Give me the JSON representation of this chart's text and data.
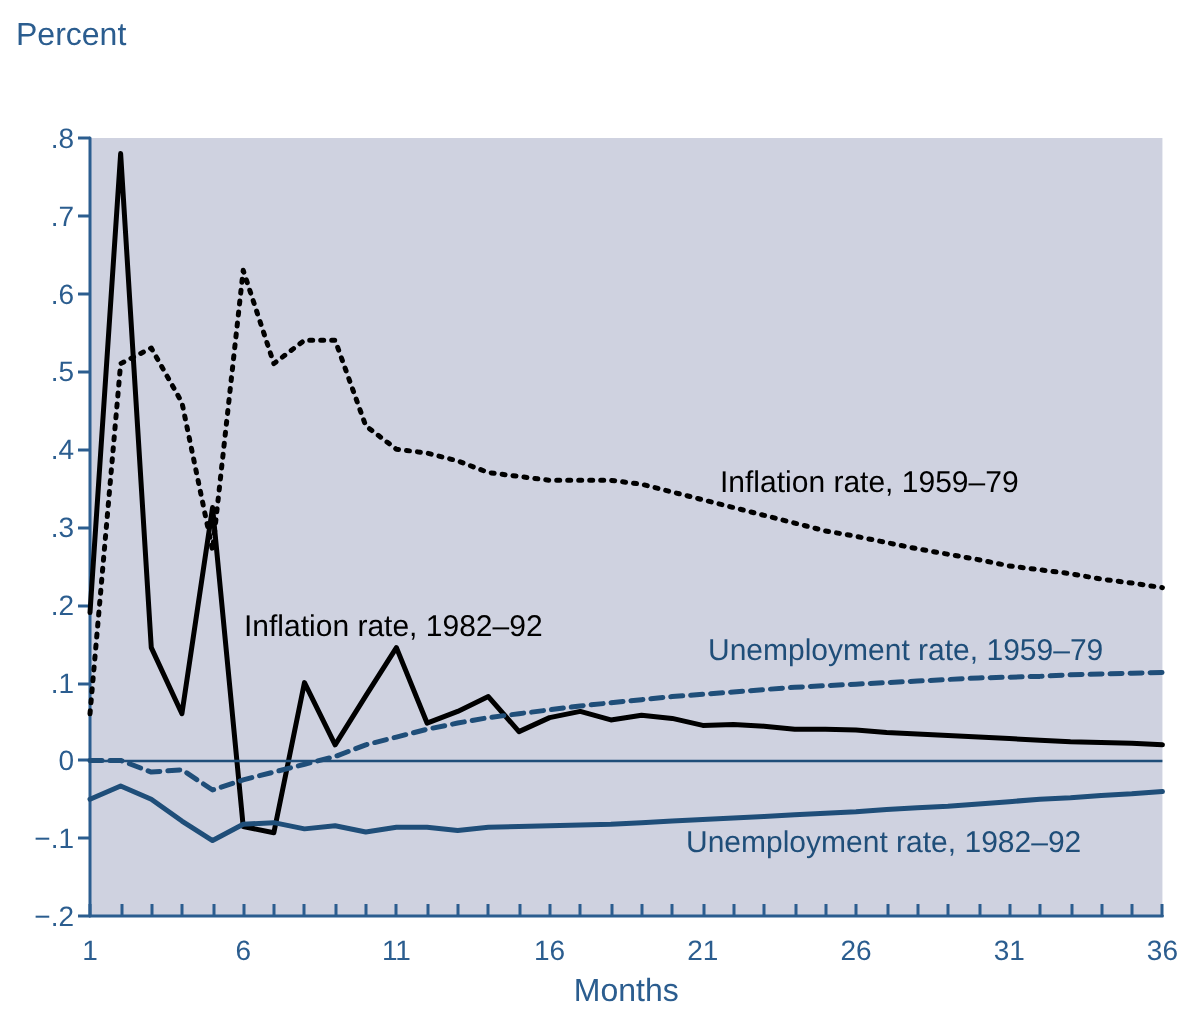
{
  "chart_data": {
    "type": "line",
    "ylabel": "Percent",
    "xlabel": "Months",
    "x": [
      1,
      2,
      3,
      4,
      5,
      6,
      7,
      8,
      9,
      10,
      11,
      12,
      13,
      14,
      15,
      16,
      17,
      18,
      19,
      20,
      21,
      22,
      23,
      24,
      25,
      26,
      27,
      28,
      29,
      30,
      31,
      32,
      33,
      34,
      35,
      36
    ],
    "xlim": [
      1,
      36
    ],
    "xticks": [
      1,
      {
        "value": 2,
        "label": null
      },
      {
        "value": 3,
        "label": null
      },
      {
        "value": 4,
        "label": null
      },
      {
        "value": 5,
        "label": null
      },
      6,
      {
        "value": 7,
        "label": null
      },
      {
        "value": 8,
        "label": null
      },
      {
        "value": 9,
        "label": null
      },
      {
        "value": 10,
        "label": null
      },
      11,
      {
        "value": 12,
        "label": null
      },
      {
        "value": 13,
        "label": null
      },
      {
        "value": 14,
        "label": null
      },
      {
        "value": 15,
        "label": null
      },
      16,
      {
        "value": 17,
        "label": null
      },
      {
        "value": 18,
        "label": null
      },
      {
        "value": 19,
        "label": null
      },
      {
        "value": 20,
        "label": null
      },
      21,
      {
        "value": 22,
        "label": null
      },
      {
        "value": 23,
        "label": null
      },
      {
        "value": 24,
        "label": null
      },
      {
        "value": 25,
        "label": null
      },
      26,
      {
        "value": 27,
        "label": null
      },
      {
        "value": 28,
        "label": null
      },
      {
        "value": 29,
        "label": null
      },
      {
        "value": 30,
        "label": null
      },
      31,
      {
        "value": 32,
        "label": null
      },
      {
        "value": 33,
        "label": null
      },
      {
        "value": 34,
        "label": null
      },
      {
        "value": 35,
        "label": null
      },
      36
    ],
    "ylim": [
      -0.2,
      0.8
    ],
    "yticks": [
      {
        "value": -0.2,
        "label": "−.2"
      },
      {
        "value": -0.1,
        "label": "−.1"
      },
      0,
      {
        "value": 0.1,
        "label": ".1"
      },
      {
        "value": 0.2,
        "label": ".2"
      },
      {
        "value": 0.3,
        "label": ".3"
      },
      {
        "value": 0.4,
        "label": ".4"
      },
      {
        "value": 0.5,
        "label": ".5"
      },
      {
        "value": 0.6,
        "label": ".6"
      },
      {
        "value": 0.7,
        "label": ".7"
      },
      {
        "value": 0.8,
        "label": ".8"
      }
    ],
    "grid": false,
    "legend": false,
    "marker": "none",
    "ref_lines": [
      {
        "axis": "y",
        "value": 0,
        "color": "#1f4e79"
      }
    ],
    "series": [
      {
        "name": "Inflation rate, 1959–79",
        "color": "#000000",
        "line_style": "dotted",
        "values": [
          0.06,
          0.51,
          0.53,
          0.46,
          0.27,
          0.63,
          0.51,
          0.54,
          0.54,
          0.43,
          0.4,
          0.395,
          0.385,
          0.37,
          0.365,
          0.36,
          0.36,
          0.36,
          0.355,
          0.345,
          0.335,
          0.325,
          0.315,
          0.305,
          0.295,
          0.288,
          0.28,
          0.272,
          0.265,
          0.258,
          0.25,
          0.245,
          0.24,
          0.233,
          0.228,
          0.222
        ]
      },
      {
        "name": "Inflation rate, 1982–92",
        "color": "#000000",
        "line_style": "solid",
        "values": [
          0.19,
          0.78,
          0.145,
          0.06,
          0.325,
          -0.085,
          -0.093,
          0.1,
          0.02,
          0.083,
          0.145,
          0.048,
          0.063,
          0.082,
          0.037,
          0.055,
          0.063,
          0.052,
          0.058,
          0.054,
          0.045,
          0.046,
          0.044,
          0.04,
          0.04,
          0.039,
          0.036,
          0.034,
          0.032,
          0.03,
          0.028,
          0.026,
          0.024,
          0.023,
          0.022,
          0.02
        ]
      },
      {
        "name": "Unemployment rate, 1959–79",
        "color": "#1f4e79",
        "line_style": "dashed",
        "values": [
          0,
          0,
          -0.015,
          -0.012,
          -0.038,
          -0.025,
          -0.015,
          -0.005,
          0.005,
          0.02,
          0.03,
          0.04,
          0.048,
          0.055,
          0.06,
          0.065,
          0.07,
          0.074,
          0.078,
          0.082,
          0.085,
          0.088,
          0.091,
          0.094,
          0.096,
          0.098,
          0.1,
          0.102,
          0.104,
          0.106,
          0.107,
          0.108,
          0.11,
          0.111,
          0.112,
          0.113
        ]
      },
      {
        "name": "Unemployment rate, 1982–92",
        "color": "#1f4e79",
        "line_style": "solid",
        "values": [
          -0.05,
          -0.033,
          -0.05,
          -0.078,
          -0.103,
          -0.082,
          -0.08,
          -0.088,
          -0.084,
          -0.092,
          -0.086,
          -0.086,
          -0.09,
          -0.086,
          -0.085,
          -0.084,
          -0.083,
          -0.082,
          -0.08,
          -0.078,
          -0.076,
          -0.074,
          -0.072,
          -0.07,
          -0.068,
          -0.066,
          -0.063,
          -0.061,
          -0.059,
          -0.056,
          -0.053,
          -0.05,
          -0.048,
          -0.045,
          -0.043,
          -0.04
        ]
      }
    ]
  }
}
